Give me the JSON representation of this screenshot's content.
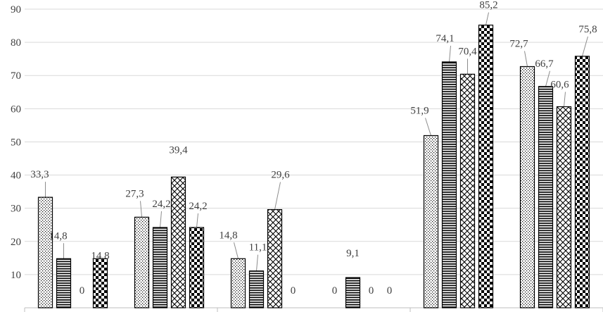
{
  "chart_data": {
    "type": "bar",
    "title": "",
    "xlabel": "",
    "ylabel": "",
    "ylim": [
      0,
      90
    ],
    "yticks": [
      10,
      20,
      30,
      40,
      50,
      60,
      70,
      80,
      90
    ],
    "grid": true,
    "legend": "none",
    "categories": [
      "",
      "",
      "",
      "",
      "",
      ""
    ],
    "series": [
      {
        "pattern": "dotted",
        "values": [
          33.3,
          27.3,
          14.8,
          0,
          51.9,
          72.7
        ],
        "labels": [
          "33,3",
          "27,3",
          "14,8",
          "0",
          "51,9",
          "72,7"
        ]
      },
      {
        "pattern": "horizontal-stripes",
        "values": [
          14.8,
          24.2,
          11.1,
          9.1,
          74.1,
          66.7
        ],
        "labels": [
          "14,8",
          "24,2",
          "11,1",
          "9,1",
          "74,1",
          "66,7"
        ]
      },
      {
        "pattern": "diagonal-crosshatch",
        "values": [
          0,
          39.4,
          29.6,
          0,
          70.4,
          60.6
        ],
        "labels": [
          "0",
          "39,4",
          "29,6",
          "0",
          "70,4",
          "60,6"
        ]
      },
      {
        "pattern": "checkerboard",
        "values": [
          14.8,
          24.2,
          0,
          0,
          85.2,
          75.8
        ],
        "labels": [
          "14,8",
          "24,2",
          "0",
          "0",
          "85,2",
          "75,8"
        ]
      }
    ]
  }
}
